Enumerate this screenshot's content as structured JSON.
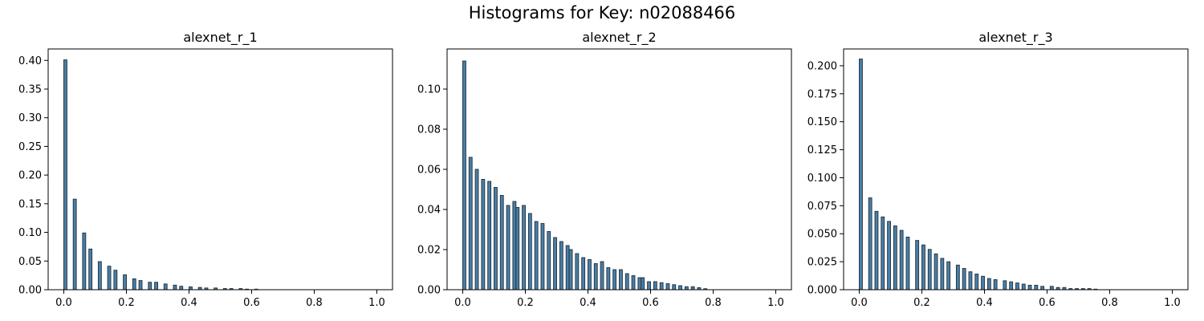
{
  "figure": {
    "suptitle": "Histograms for Key: n02088466"
  },
  "style": {
    "bar_fill": "#4a7fa6",
    "bar_stroke": "#1f2f3c"
  },
  "chart_data": [
    {
      "type": "bar",
      "title": "alexnet_r_1",
      "xlim": [
        -0.05,
        1.05
      ],
      "ylim": [
        0,
        0.42
      ],
      "x_ticks": [
        0.0,
        0.2,
        0.4,
        0.6,
        0.8,
        1.0
      ],
      "x_tick_labels": [
        "0.0",
        "0.2",
        "0.4",
        "0.6",
        "0.8",
        "1.0"
      ],
      "y_ticks": [
        0.0,
        0.05,
        0.1,
        0.15,
        0.2,
        0.25,
        0.3,
        0.35,
        0.4
      ],
      "y_tick_labels": [
        "0.00",
        "0.05",
        "0.10",
        "0.15",
        "0.20",
        "0.25",
        "0.30",
        "0.35",
        "0.40"
      ],
      "bin_width": 0.01,
      "x": [
        0.0,
        0.03,
        0.06,
        0.08,
        0.11,
        0.14,
        0.16,
        0.19,
        0.22,
        0.24,
        0.27,
        0.29,
        0.32,
        0.35,
        0.37,
        0.4,
        0.43,
        0.45,
        0.48,
        0.51,
        0.53,
        0.56,
        0.58,
        0.61
      ],
      "values": [
        0.401,
        0.158,
        0.099,
        0.071,
        0.049,
        0.041,
        0.034,
        0.026,
        0.019,
        0.016,
        0.013,
        0.013,
        0.01,
        0.008,
        0.006,
        0.005,
        0.004,
        0.003,
        0.003,
        0.002,
        0.002,
        0.002,
        0.001,
        0.001
      ]
    },
    {
      "type": "bar",
      "title": "alexnet_r_2",
      "xlim": [
        -0.05,
        1.05
      ],
      "ylim": [
        0,
        0.12
      ],
      "x_ticks": [
        0.0,
        0.2,
        0.4,
        0.6,
        0.8,
        1.0
      ],
      "x_tick_labels": [
        "0.0",
        "0.2",
        "0.4",
        "0.6",
        "0.8",
        "1.0"
      ],
      "y_ticks": [
        0.0,
        0.02,
        0.04,
        0.06,
        0.08,
        0.1
      ],
      "y_tick_labels": [
        "0.00",
        "0.02",
        "0.04",
        "0.06",
        "0.08",
        "0.10"
      ],
      "bin_width": 0.01,
      "x": [
        0.0,
        0.02,
        0.04,
        0.06,
        0.08,
        0.1,
        0.12,
        0.14,
        0.16,
        0.17,
        0.19,
        0.21,
        0.23,
        0.25,
        0.27,
        0.29,
        0.31,
        0.33,
        0.34,
        0.36,
        0.38,
        0.4,
        0.42,
        0.44,
        0.46,
        0.48,
        0.5,
        0.52,
        0.54,
        0.56,
        0.57,
        0.59,
        0.61,
        0.63,
        0.65,
        0.67,
        0.69,
        0.71,
        0.73,
        0.75,
        0.77
      ],
      "values": [
        0.114,
        0.066,
        0.06,
        0.055,
        0.054,
        0.051,
        0.047,
        0.042,
        0.044,
        0.041,
        0.042,
        0.038,
        0.034,
        0.033,
        0.029,
        0.026,
        0.024,
        0.022,
        0.02,
        0.018,
        0.016,
        0.015,
        0.013,
        0.014,
        0.011,
        0.01,
        0.01,
        0.008,
        0.007,
        0.006,
        0.006,
        0.004,
        0.004,
        0.0035,
        0.003,
        0.0025,
        0.002,
        0.0015,
        0.0015,
        0.001,
        0.0005
      ]
    },
    {
      "type": "bar",
      "title": "alexnet_r_3",
      "xlim": [
        -0.05,
        1.05
      ],
      "ylim": [
        0,
        0.215
      ],
      "x_ticks": [
        0.0,
        0.2,
        0.4,
        0.6,
        0.8,
        1.0
      ],
      "x_tick_labels": [
        "0.0",
        "0.2",
        "0.4",
        "0.6",
        "0.8",
        "1.0"
      ],
      "y_ticks": [
        0.0,
        0.025,
        0.05,
        0.075,
        0.1,
        0.125,
        0.15,
        0.175,
        0.2
      ],
      "y_tick_labels": [
        "0.000",
        "0.025",
        "0.050",
        "0.075",
        "0.100",
        "0.125",
        "0.150",
        "0.175",
        "0.200"
      ],
      "bin_width": 0.01,
      "x": [
        0.0,
        0.03,
        0.05,
        0.07,
        0.09,
        0.11,
        0.13,
        0.15,
        0.18,
        0.2,
        0.22,
        0.24,
        0.26,
        0.28,
        0.31,
        0.33,
        0.35,
        0.37,
        0.39,
        0.41,
        0.43,
        0.46,
        0.48,
        0.5,
        0.52,
        0.54,
        0.56,
        0.58,
        0.61,
        0.63,
        0.65,
        0.67,
        0.69,
        0.71,
        0.73,
        0.75
      ],
      "values": [
        0.206,
        0.082,
        0.07,
        0.065,
        0.061,
        0.057,
        0.053,
        0.047,
        0.044,
        0.04,
        0.036,
        0.032,
        0.028,
        0.025,
        0.022,
        0.019,
        0.016,
        0.014,
        0.012,
        0.01,
        0.009,
        0.008,
        0.007,
        0.006,
        0.005,
        0.004,
        0.004,
        0.003,
        0.003,
        0.002,
        0.002,
        0.001,
        0.001,
        0.001,
        0.001,
        0.0005
      ]
    }
  ]
}
